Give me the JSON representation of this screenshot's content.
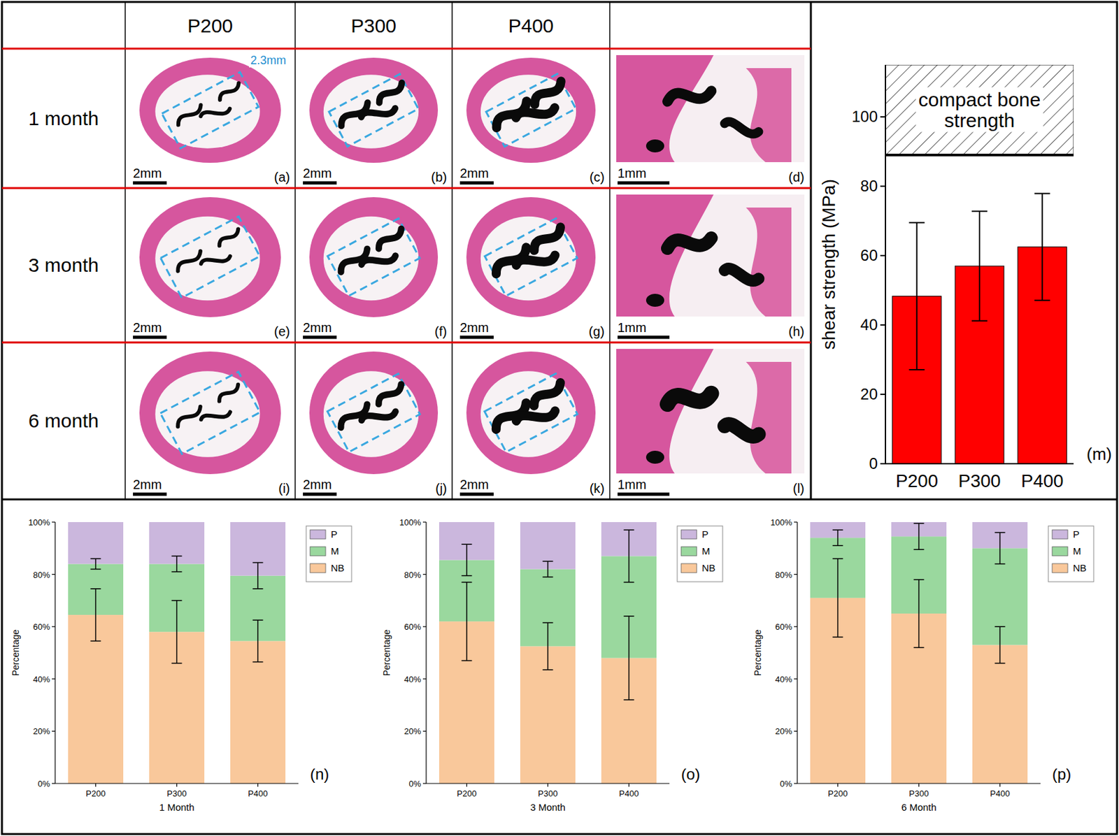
{
  "histology": {
    "columns": [
      "P200",
      "P300",
      "P400"
    ],
    "rows": [
      "1 month",
      "3 month",
      "6 month"
    ],
    "panel_letters": [
      [
        "(a)",
        "(b)",
        "(c)",
        "(d)"
      ],
      [
        "(e)",
        "(f)",
        "(g)",
        "(h)"
      ],
      [
        "(i)",
        "(j)",
        "(k)",
        "(l)"
      ]
    ],
    "scale_bar": "2mm",
    "zoom_scale_bar": "1mm",
    "width_annotation": "2.3mm"
  },
  "chart_data": [
    {
      "type": "bar",
      "panel_label": "(m)",
      "y_label": "shear strength (MPa)",
      "categories": [
        "P200",
        "P300",
        "P400"
      ],
      "values": [
        48.3,
        57,
        62.5
      ],
      "errors": [
        21.2,
        15.8,
        15.4
      ],
      "color": "#ff0000",
      "ylim": [
        0,
        115
      ],
      "yticks": [
        0,
        20,
        40,
        60,
        80,
        100
      ],
      "reference_band": {
        "label": "compact bone strength",
        "from": 89,
        "to": 115
      }
    },
    {
      "type": "bar",
      "stacked": true,
      "panel_label": "(n)",
      "x_label": "1 Month",
      "y_label": "Percentage",
      "categories": [
        "P200",
        "P300",
        "P400"
      ],
      "series": [
        {
          "name": "NB",
          "color": "#f9c89b",
          "values": [
            64.5,
            58,
            54.5
          ],
          "errors": [
            10,
            12,
            8
          ]
        },
        {
          "name": "M",
          "color": "#9ad89e",
          "values": [
            19.5,
            26,
            25
          ],
          "errors": [
            2,
            3,
            5
          ]
        },
        {
          "name": "P",
          "color": "#cbb7dd",
          "values": [
            16,
            16,
            20.5
          ]
        }
      ],
      "ylim": [
        0,
        100
      ],
      "yticks": [
        {
          "value": 0,
          "label": "0%"
        },
        {
          "value": 20,
          "label": "20%"
        },
        {
          "value": 40,
          "label": "40%"
        },
        {
          "value": 60,
          "label": "60%"
        },
        {
          "value": 80,
          "label": "80%"
        },
        {
          "value": 100,
          "label": "100%"
        }
      ],
      "legend": "right"
    },
    {
      "type": "bar",
      "stacked": true,
      "panel_label": "(o)",
      "x_label": "3 Month",
      "y_label": "Percentage",
      "categories": [
        "P200",
        "P300",
        "P400"
      ],
      "series": [
        {
          "name": "NB",
          "color": "#f9c89b",
          "values": [
            62,
            52.5,
            48
          ],
          "errors": [
            15,
            9,
            16
          ]
        },
        {
          "name": "M",
          "color": "#9ad89e",
          "values": [
            23.5,
            29.5,
            39
          ],
          "errors": [
            6,
            3,
            10
          ]
        },
        {
          "name": "P",
          "color": "#cbb7dd",
          "values": [
            14.5,
            18,
            13
          ]
        }
      ],
      "ylim": [
        0,
        100
      ],
      "yticks": [
        {
          "value": 0,
          "label": "0%"
        },
        {
          "value": 20,
          "label": "20%"
        },
        {
          "value": 40,
          "label": "40%"
        },
        {
          "value": 60,
          "label": "60%"
        },
        {
          "value": 80,
          "label": "80%"
        },
        {
          "value": 100,
          "label": "100%"
        }
      ],
      "legend": "right"
    },
    {
      "type": "bar",
      "stacked": true,
      "panel_label": "(p)",
      "x_label": "6 Month",
      "y_label": "Percentage",
      "categories": [
        "P200",
        "P300",
        "P400"
      ],
      "series": [
        {
          "name": "NB",
          "color": "#f9c89b",
          "values": [
            71,
            65,
            53
          ],
          "errors": [
            15,
            13,
            7
          ]
        },
        {
          "name": "M",
          "color": "#9ad89e",
          "values": [
            23,
            29.5,
            37
          ],
          "errors": [
            3,
            5,
            6
          ]
        },
        {
          "name": "P",
          "color": "#cbb7dd",
          "values": [
            6,
            5.5,
            10
          ]
        }
      ],
      "ylim": [
        0,
        100
      ],
      "yticks": [
        {
          "value": 0,
          "label": "0%"
        },
        {
          "value": 20,
          "label": "20%"
        },
        {
          "value": 40,
          "label": "40%"
        },
        {
          "value": 60,
          "label": "60%"
        },
        {
          "value": 80,
          "label": "80%"
        },
        {
          "value": 100,
          "label": "100%"
        }
      ],
      "legend": "right"
    }
  ]
}
